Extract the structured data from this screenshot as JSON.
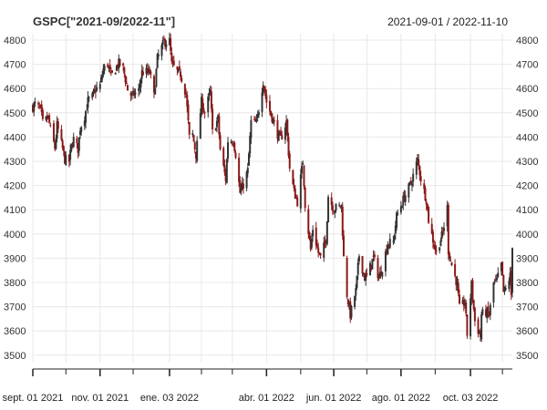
{
  "chart_data": {
    "type": "candlestick",
    "title": "GSPC[\"2021-09/2022-11\"]",
    "date_range_label": "2021-09-01 / 2022-11-10",
    "x_start": "2021-09-01",
    "x_end": "2022-11-10",
    "ylim": [
      3450,
      4820
    ],
    "y_ticks": [
      3500,
      3600,
      3700,
      3800,
      3900,
      4000,
      4100,
      4200,
      4300,
      4400,
      4500,
      4600,
      4700,
      4800
    ],
    "x_tick_labels": [
      {
        "date": "2021-09-01",
        "label": "sept. 01 2021"
      },
      {
        "date": "2021-11-01",
        "label": "nov. 01 2021"
      },
      {
        "date": "2022-01-03",
        "label": "ene. 03 2022"
      },
      {
        "date": "2022-04-01",
        "label": "abr. 01 2022"
      },
      {
        "date": "2022-06-01",
        "label": "jun. 01 2022"
      },
      {
        "date": "2022-08-01",
        "label": "ago. 01 2022"
      },
      {
        "date": "2022-10-03",
        "label": "oct. 03 2022"
      }
    ],
    "x_minor_ticks": [
      "2021-09-01",
      "2021-10-01",
      "2021-11-01",
      "2021-12-01",
      "2022-01-03",
      "2022-02-01",
      "2022-03-01",
      "2022-04-01",
      "2022-05-02",
      "2022-06-01",
      "2022-07-01",
      "2022-08-01",
      "2022-09-01",
      "2022-10-03",
      "2022-11-01"
    ],
    "grid": true,
    "up_color": "#333333",
    "down_color": "#8b1a1a",
    "close_series": [
      [
        "2021-09-01",
        4524
      ],
      [
        "2021-09-03",
        4535
      ],
      [
        "2021-09-08",
        4514
      ],
      [
        "2021-09-10",
        4458
      ],
      [
        "2021-09-15",
        4480
      ],
      [
        "2021-09-17",
        4432
      ],
      [
        "2021-09-21",
        4355
      ],
      [
        "2021-09-23",
        4448
      ],
      [
        "2021-09-28",
        4352
      ],
      [
        "2021-09-30",
        4307
      ],
      [
        "2021-10-04",
        4300
      ],
      [
        "2021-10-06",
        4363
      ],
      [
        "2021-10-08",
        4391
      ],
      [
        "2021-10-12",
        4350
      ],
      [
        "2021-10-14",
        4438
      ],
      [
        "2021-10-18",
        4486
      ],
      [
        "2021-10-21",
        4549
      ],
      [
        "2021-10-25",
        4566
      ],
      [
        "2021-10-28",
        4596
      ],
      [
        "2021-11-01",
        4613
      ],
      [
        "2021-11-04",
        4680
      ],
      [
        "2021-11-08",
        4701
      ],
      [
        "2021-11-11",
        4649
      ],
      [
        "2021-11-15",
        4682
      ],
      [
        "2021-11-18",
        4704
      ],
      [
        "2021-11-22",
        4682
      ],
      [
        "2021-11-26",
        4595
      ],
      [
        "2021-11-30",
        4567
      ],
      [
        "2021-12-02",
        4577
      ],
      [
        "2021-12-06",
        4591
      ],
      [
        "2021-12-09",
        4667
      ],
      [
        "2021-12-13",
        4668
      ],
      [
        "2021-12-16",
        4668
      ],
      [
        "2021-12-20",
        4568
      ],
      [
        "2021-12-23",
        4725
      ],
      [
        "2021-12-29",
        4793
      ],
      [
        "2022-01-03",
        4796
      ],
      [
        "2022-01-05",
        4700
      ],
      [
        "2022-01-10",
        4670
      ],
      [
        "2022-01-13",
        4659
      ],
      [
        "2022-01-18",
        4577
      ],
      [
        "2022-01-21",
        4398
      ],
      [
        "2022-01-24",
        4410
      ],
      [
        "2022-01-27",
        4326
      ],
      [
        "2022-02-01",
        4546
      ],
      [
        "2022-02-04",
        4500
      ],
      [
        "2022-02-09",
        4587
      ],
      [
        "2022-02-11",
        4419
      ],
      [
        "2022-02-16",
        4475
      ],
      [
        "2022-02-18",
        4349
      ],
      [
        "2022-02-23",
        4225
      ],
      [
        "2022-02-25",
        4385
      ],
      [
        "2022-03-02",
        4386
      ],
      [
        "2022-03-04",
        4329
      ],
      [
        "2022-03-08",
        4170
      ],
      [
        "2022-03-11",
        4204
      ],
      [
        "2022-03-15",
        4262
      ],
      [
        "2022-03-18",
        4463
      ],
      [
        "2022-03-23",
        4456
      ],
      [
        "2022-03-29",
        4631
      ],
      [
        "2022-04-01",
        4545
      ],
      [
        "2022-04-06",
        4481
      ],
      [
        "2022-04-11",
        4412
      ],
      [
        "2022-04-14",
        4392
      ],
      [
        "2022-04-19",
        4462
      ],
      [
        "2022-04-22",
        4272
      ],
      [
        "2022-04-26",
        4175
      ],
      [
        "2022-04-29",
        4132
      ],
      [
        "2022-05-04",
        4300
      ],
      [
        "2022-05-06",
        4123
      ],
      [
        "2022-05-11",
        3935
      ],
      [
        "2022-05-13",
        4023
      ],
      [
        "2022-05-18",
        3923
      ],
      [
        "2022-05-20",
        3901
      ],
      [
        "2022-05-25",
        3978
      ],
      [
        "2022-05-27",
        4158
      ],
      [
        "2022-06-01",
        4101
      ],
      [
        "2022-06-03",
        4108
      ],
      [
        "2022-06-08",
        4116
      ],
      [
        "2022-06-10",
        3901
      ],
      [
        "2022-06-13",
        3750
      ],
      [
        "2022-06-16",
        3666
      ],
      [
        "2022-06-21",
        3765
      ],
      [
        "2022-06-24",
        3912
      ],
      [
        "2022-06-29",
        3819
      ],
      [
        "2022-07-01",
        3825
      ],
      [
        "2022-07-07",
        3903
      ],
      [
        "2022-07-12",
        3819
      ],
      [
        "2022-07-15",
        3863
      ],
      [
        "2022-07-20",
        3960
      ],
      [
        "2022-07-25",
        3967
      ],
      [
        "2022-07-28",
        4073
      ],
      [
        "2022-08-01",
        4119
      ],
      [
        "2022-08-04",
        4152
      ],
      [
        "2022-08-10",
        4210
      ],
      [
        "2022-08-16",
        4305
      ],
      [
        "2022-08-19",
        4228
      ],
      [
        "2022-08-24",
        4141
      ],
      [
        "2022-08-26",
        4058
      ],
      [
        "2022-08-31",
        3955
      ],
      [
        "2022-09-02",
        3924
      ],
      [
        "2022-09-08",
        4006
      ],
      [
        "2022-09-12",
        4110
      ],
      [
        "2022-09-13",
        3932
      ],
      [
        "2022-09-16",
        3873
      ],
      [
        "2022-09-21",
        3790
      ],
      [
        "2022-09-23",
        3693
      ],
      [
        "2022-09-28",
        3719
      ],
      [
        "2022-09-30",
        3586
      ],
      [
        "2022-10-04",
        3791
      ],
      [
        "2022-10-07",
        3640
      ],
      [
        "2022-10-12",
        3577
      ],
      [
        "2022-10-13",
        3669
      ],
      [
        "2022-10-17",
        3677
      ],
      [
        "2022-10-20",
        3665
      ],
      [
        "2022-10-24",
        3797
      ],
      [
        "2022-10-27",
        3808
      ],
      [
        "2022-10-31",
        3872
      ],
      [
        "2022-11-02",
        3760
      ],
      [
        "2022-11-04",
        3771
      ],
      [
        "2022-11-08",
        3828
      ],
      [
        "2022-11-09",
        3749
      ],
      [
        "2022-11-10",
        3956
      ]
    ]
  }
}
